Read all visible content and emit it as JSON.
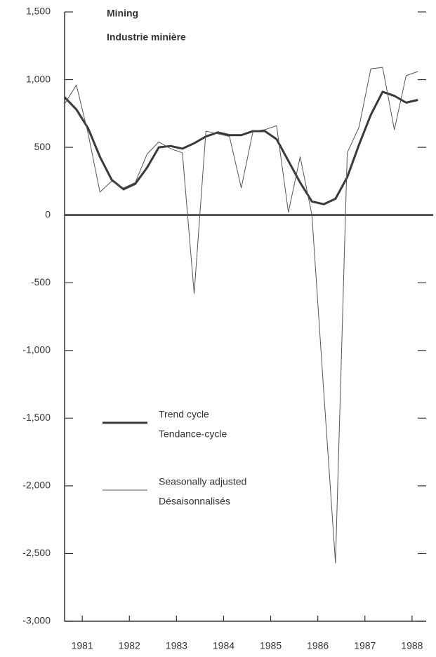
{
  "chart_data": {
    "type": "line",
    "title": "Mining",
    "subtitle": "Industrie minière",
    "x": [
      1981.125,
      1981.375,
      1981.625,
      1981.875,
      1982.125,
      1982.375,
      1982.625,
      1982.875,
      1983.125,
      1983.375,
      1983.625,
      1983.875,
      1984.125,
      1984.375,
      1984.625,
      1984.875,
      1985.125,
      1985.375,
      1985.625,
      1985.875,
      1986.125,
      1986.375,
      1986.625,
      1986.875,
      1987.125,
      1987.375,
      1987.625,
      1987.875,
      1988.125,
      1988.375,
      1988.625
    ],
    "series": [
      {
        "name": "Trend cycle",
        "name_fr": "Tendance-cycle",
        "color": "#3a3a3a",
        "width": 3,
        "values": [
          870,
          780,
          640,
          430,
          260,
          190,
          230,
          350,
          500,
          510,
          490,
          530,
          580,
          610,
          590,
          590,
          620,
          620,
          560,
          400,
          240,
          100,
          80,
          120,
          280,
          520,
          740,
          910,
          880,
          830,
          850
        ]
      },
      {
        "name": "Seasonally adjusted",
        "name_fr": "Désaisonnalisés",
        "color": "#555555",
        "width": 1,
        "values": [
          820,
          960,
          600,
          170,
          250,
          200,
          240,
          450,
          540,
          490,
          460,
          -580,
          620,
          600,
          580,
          200,
          620,
          630,
          660,
          20,
          430,
          0,
          -1300,
          -2570,
          460,
          650,
          1080,
          1090,
          630,
          1030,
          1060
        ]
      }
    ],
    "xlim": [
      1981.125,
      1988.8
    ],
    "xticks": [
      {
        "value": 1981.5,
        "label": "1981"
      },
      {
        "value": 1982.5,
        "label": "1982"
      },
      {
        "value": 1983.5,
        "label": "1983"
      },
      {
        "value": 1984.5,
        "label": "1984"
      },
      {
        "value": 1985.5,
        "label": "1985"
      },
      {
        "value": 1986.5,
        "label": "1986"
      },
      {
        "value": 1987.5,
        "label": "1987"
      },
      {
        "value": 1988.5,
        "label": "1988"
      }
    ],
    "ylim": [
      -3000,
      1500
    ],
    "yticks": [
      {
        "value": 1500,
        "label": "1,500"
      },
      {
        "value": 1000,
        "label": "1,000"
      },
      500,
      0,
      -500,
      {
        "value": -1000,
        "label": "-1,000"
      },
      {
        "value": -1500,
        "label": "-1,500"
      },
      {
        "value": -2000,
        "label": "-2,000"
      },
      {
        "value": -2500,
        "label": "-2,500"
      },
      {
        "value": -3000,
        "label": "-3,000"
      }
    ]
  }
}
